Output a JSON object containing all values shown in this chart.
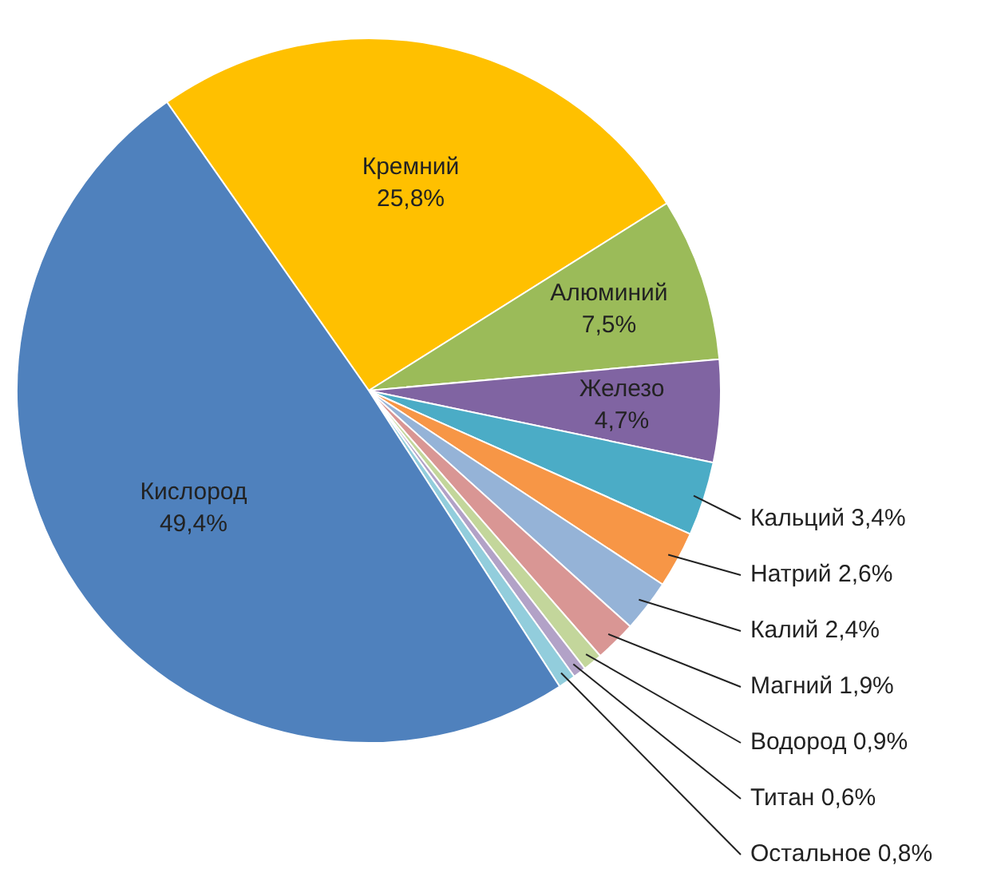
{
  "chart_data": {
    "type": "pie",
    "categories": [
      "Кремний",
      "Алюминий",
      "Железо",
      "Кальций",
      "Натрий",
      "Калий",
      "Магний",
      "Водород",
      "Титан",
      "Остальное",
      "Кислород"
    ],
    "values": [
      25.8,
      7.5,
      4.7,
      3.4,
      2.6,
      2.4,
      1.9,
      0.9,
      0.6,
      0.8,
      49.4
    ],
    "value_labels": [
      "25,8%",
      "7,5%",
      "4,7%",
      "3,4%",
      "2,6%",
      "2,4%",
      "1,9%",
      "0,9%",
      "0,6%",
      "0,8%",
      "49,4%"
    ],
    "colors": [
      "#ffc000",
      "#9bbb59",
      "#8064a2",
      "#4bacc6",
      "#f79646",
      "#95b3d7",
      "#d99694",
      "#c3d69b",
      "#b2a2c7",
      "#92cddc",
      "#4f81bd"
    ],
    "legend": false
  }
}
